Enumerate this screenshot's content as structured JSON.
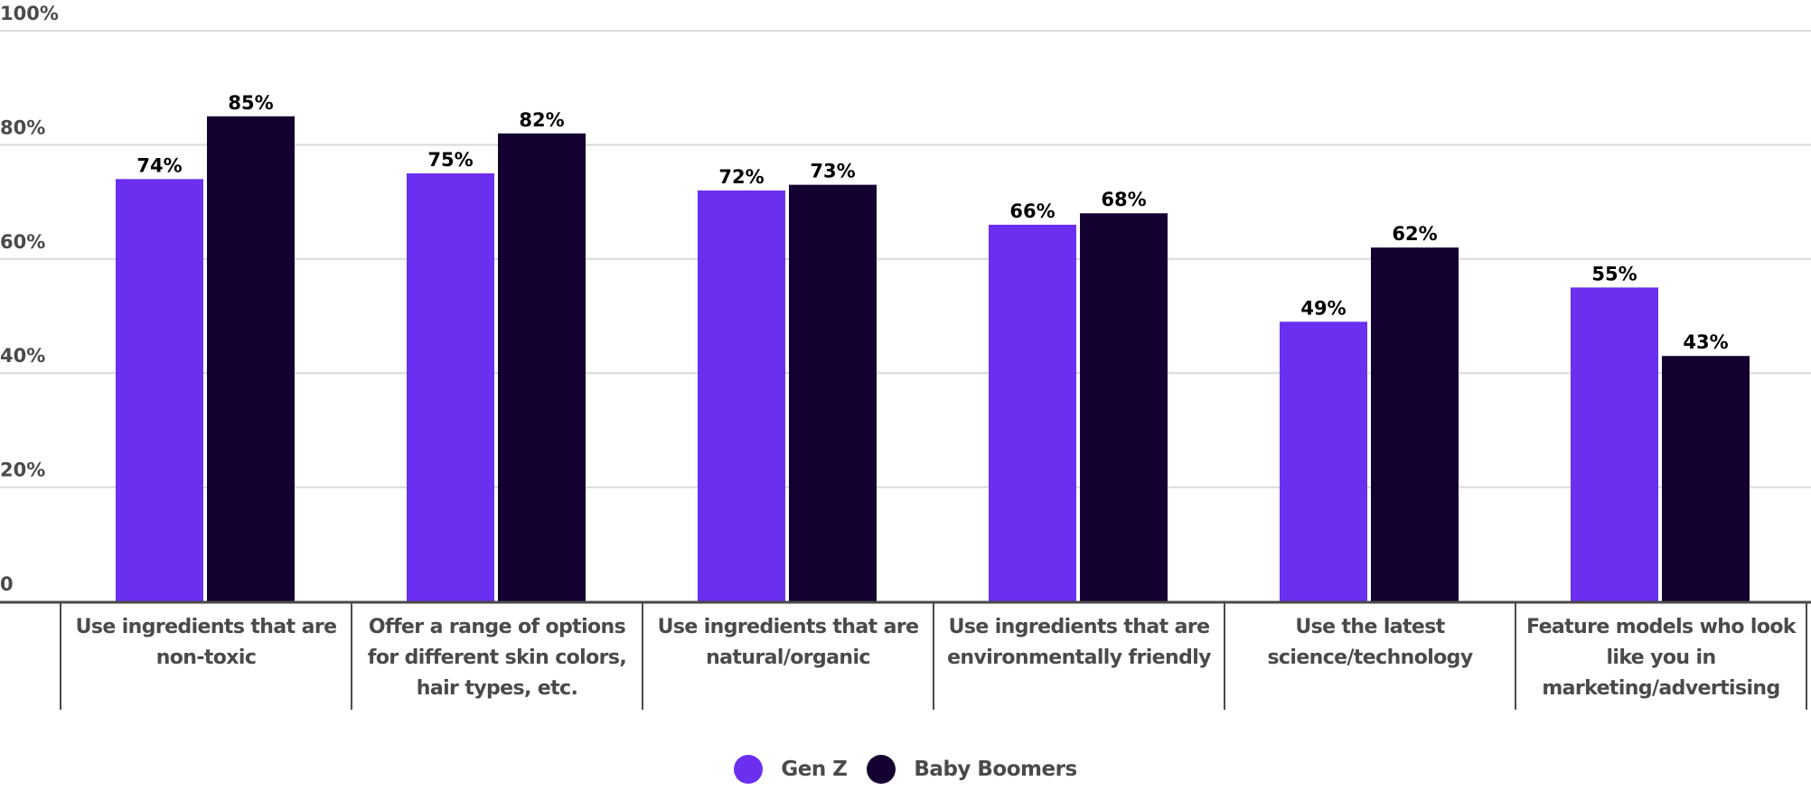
{
  "chart_data": {
    "type": "bar",
    "title": "",
    "xlabel": "",
    "ylabel": "",
    "ylim": [
      0,
      100
    ],
    "yticks": [
      {
        "value": 0,
        "label": "0"
      },
      {
        "value": 20,
        "label": "20%"
      },
      {
        "value": 40,
        "label": "40%"
      },
      {
        "value": 60,
        "label": "60%"
      },
      {
        "value": 80,
        "label": "80%"
      },
      {
        "value": 100,
        "label": "100%"
      }
    ],
    "grid": true,
    "legend_position": "bottom-center",
    "categories": [
      "Use ingredients that are non-toxic",
      "Offer a range of options for different skin colors, hair types, etc.",
      "Use ingredients that are natural/organic",
      "Use ingredients that are environmentally friendly",
      "Use the latest science/technology",
      "Feature models who look like you in marketing/advertising"
    ],
    "series": [
      {
        "name": "Gen Z",
        "color": "#6b2ff0",
        "values": [
          74,
          75,
          72,
          66,
          49,
          55
        ],
        "labels": [
          "74%",
          "75%",
          "72%",
          "66%",
          "49%",
          "55%"
        ]
      },
      {
        "name": "Baby Boomers",
        "color": "#130030",
        "values": [
          85,
          82,
          73,
          68,
          62,
          43
        ],
        "labels": [
          "85%",
          "82%",
          "73%",
          "68%",
          "62%",
          "43%"
        ]
      }
    ]
  },
  "colors": {
    "gridline": "#d9d9d9",
    "axis": "#4a4a4a",
    "tick_text": "#4a4a4a",
    "data_label": "#000000"
  }
}
